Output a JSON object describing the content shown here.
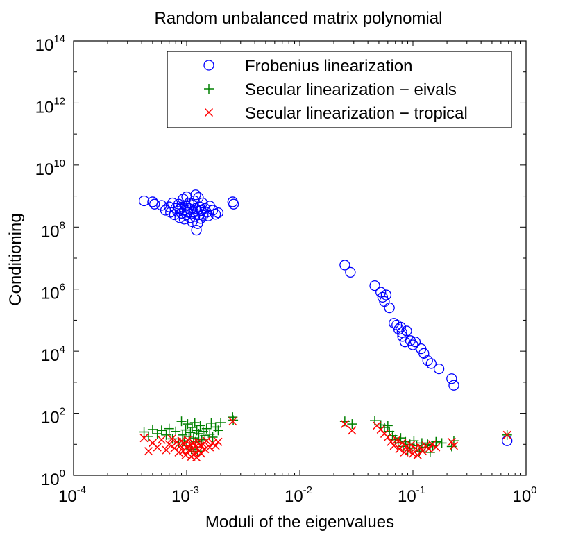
{
  "chart_data": {
    "type": "scatter",
    "title": "Random unbalanced matrix polynomial",
    "xlabel": "Moduli of the eigenvalues",
    "ylabel": "Conditioning",
    "xscale": "log",
    "yscale": "log",
    "xlim": [
      0.0001,
      1
    ],
    "ylim": [
      1,
      100000000000000
    ],
    "x_ticks": [
      {
        "base": "10",
        "exp": "-4",
        "value": 0.0001
      },
      {
        "base": "10",
        "exp": "-3",
        "value": 0.001
      },
      {
        "base": "10",
        "exp": "-2",
        "value": 0.01
      },
      {
        "base": "10",
        "exp": "-1",
        "value": 0.1
      },
      {
        "base": "10",
        "exp": "0",
        "value": 1
      }
    ],
    "y_ticks": [
      {
        "base": "10",
        "exp": "0",
        "value": 1
      },
      {
        "base": "10",
        "exp": "2",
        "value": 100
      },
      {
        "base": "10",
        "exp": "4",
        "value": 10000
      },
      {
        "base": "10",
        "exp": "6",
        "value": 1000000
      },
      {
        "base": "10",
        "exp": "8",
        "value": 100000000
      },
      {
        "base": "10",
        "exp": "10",
        "value": 10000000000
      },
      {
        "base": "10",
        "exp": "12",
        "value": 1000000000000
      },
      {
        "base": "10",
        "exp": "14",
        "value": 100000000000000
      }
    ],
    "legend_position": "top-right",
    "series": [
      {
        "name": "Frobenius linearization",
        "marker": "circle",
        "color": "#0000ff",
        "points": [
          [
            0.00042,
            700000000.0
          ],
          [
            0.0005,
            650000000.0
          ],
          [
            0.00052,
            550000000.0
          ],
          [
            0.0006,
            500000000.0
          ],
          [
            0.00065,
            350000000.0
          ],
          [
            0.0007,
            450000000.0
          ],
          [
            0.00072,
            300000000.0
          ],
          [
            0.00075,
            600000000.0
          ],
          [
            0.00078,
            250000000.0
          ],
          [
            0.0008,
            400000000.0
          ],
          [
            0.00083,
            320000000.0
          ],
          [
            0.00085,
            550000000.0
          ],
          [
            0.00087,
            200000000.0
          ],
          [
            0.00088,
            380000000.0
          ],
          [
            0.0009,
            280000000.0
          ],
          [
            0.00092,
            450000000.0
          ],
          [
            0.00093,
            800000000.0
          ],
          [
            0.00095,
            180000000.0
          ],
          [
            0.00096,
            350000000.0
          ],
          [
            0.00098,
            500000000.0
          ],
          [
            0.001,
            250000000.0
          ],
          [
            0.001,
            950000000.0
          ],
          [
            0.00102,
            300000000.0
          ],
          [
            0.00104,
            400000000.0
          ],
          [
            0.00105,
            600000000.0
          ],
          [
            0.00107,
            200000000.0
          ],
          [
            0.00108,
            360000000.0
          ],
          [
            0.0011,
            270000000.0
          ],
          [
            0.00112,
            150000000.0
          ],
          [
            0.00113,
            500000000.0
          ],
          [
            0.00115,
            300000000.0
          ],
          [
            0.00117,
            700000000.0
          ],
          [
            0.00118,
            220000000.0
          ],
          [
            0.0012,
            1100000000.0
          ],
          [
            0.0012,
            400000000.0
          ],
          [
            0.00122,
            80000000.0
          ],
          [
            0.00124,
            320000000.0
          ],
          [
            0.00125,
            130000000.0
          ],
          [
            0.00127,
            900000000.0
          ],
          [
            0.00128,
            250000000.0
          ],
          [
            0.0013,
            450000000.0
          ],
          [
            0.00133,
            190000000.0
          ],
          [
            0.00135,
            340000000.0
          ],
          [
            0.00138,
            600000000.0
          ],
          [
            0.0014,
            240000000.0
          ],
          [
            0.00145,
            400000000.0
          ],
          [
            0.0015,
            300000000.0
          ],
          [
            0.00155,
            230000000.0
          ],
          [
            0.0016,
            480000000.0
          ],
          [
            0.0017,
            350000000.0
          ],
          [
            0.0018,
            260000000.0
          ],
          [
            0.0019,
            290000000.0
          ],
          [
            0.00255,
            650000000.0
          ],
          [
            0.0026,
            550000000.0
          ]
        ]
      },
      {
        "name": "Frobenius linearization",
        "marker": "circle",
        "color": "#0000ff",
        "points": [
          [
            0.025,
            6000000.0
          ],
          [
            0.028,
            3500000.0
          ],
          [
            0.046,
            1300000.0
          ],
          [
            0.052,
            800000.0
          ],
          [
            0.054,
            550000.0
          ],
          [
            0.056,
            400000.0
          ],
          [
            0.058,
            650000.0
          ],
          [
            0.062,
            250000.0
          ],
          [
            0.068,
            80000.0
          ],
          [
            0.072,
            70000.0
          ],
          [
            0.075,
            50000.0
          ],
          [
            0.078,
            60000.0
          ],
          [
            0.08,
            40000.0
          ],
          [
            0.081,
            30000.0
          ],
          [
            0.085,
            20000.0
          ],
          [
            0.088,
            45000.0
          ],
          [
            0.095,
            22000.0
          ],
          [
            0.1,
            16000.0
          ],
          [
            0.105,
            20000.0
          ],
          [
            0.118,
            12000.0
          ],
          [
            0.125,
            8500.0
          ],
          [
            0.135,
            5000.0
          ],
          [
            0.145,
            4000.0
          ],
          [
            0.17,
            2700.0
          ],
          [
            0.22,
            1300.0
          ],
          [
            0.23,
            800.0
          ],
          [
            0.68,
            13.0
          ]
        ]
      },
      {
        "name": "Secular linearization − eivals",
        "marker": "plus",
        "color": "#008000",
        "points": [
          [
            0.00042,
            25.0
          ],
          [
            0.00046,
            18.0
          ],
          [
            0.0005,
            30.0
          ],
          [
            0.00055,
            22.0
          ],
          [
            0.0006,
            28.0
          ],
          [
            0.00066,
            20.0
          ],
          [
            0.0007,
            32.0
          ],
          [
            0.00075,
            15.0
          ],
          [
            0.0008,
            26.0
          ],
          [
            0.00085,
            11.0
          ],
          [
            0.0009,
            55.0
          ],
          [
            0.00092,
            20.0
          ],
          [
            0.00095,
            13.0
          ],
          [
            0.00098,
            29.0
          ],
          [
            0.001,
            9.0
          ],
          [
            0.00102,
            45.0
          ],
          [
            0.00105,
            18.0
          ],
          [
            0.00108,
            24.0
          ],
          [
            0.0011,
            7.0
          ],
          [
            0.00112,
            35.0
          ],
          [
            0.00115,
            16.0
          ],
          [
            0.00118,
            50.0
          ],
          [
            0.0012,
            12.0
          ],
          [
            0.00123,
            28.0
          ],
          [
            0.00125,
            6.0
          ],
          [
            0.00128,
            22.0
          ],
          [
            0.00132,
            40.0
          ],
          [
            0.00136,
            14.0
          ],
          [
            0.0014,
            26.0
          ],
          [
            0.00145,
            19.0
          ],
          [
            0.0015,
            32.0
          ],
          [
            0.0016,
            21.0
          ],
          [
            0.00165,
            48.0
          ],
          [
            0.0017,
            17.0
          ],
          [
            0.0018,
            36.0
          ],
          [
            0.0019,
            28.0
          ],
          [
            0.002,
            50.0
          ],
          [
            0.00255,
            75.0
          ],
          [
            0.00258,
            60.0
          ],
          [
            0.025,
            55.0
          ],
          [
            0.029,
            45.0
          ],
          [
            0.046,
            58.0
          ],
          [
            0.052,
            42.0
          ],
          [
            0.056,
            35.0
          ],
          [
            0.06,
            40.0
          ],
          [
            0.062,
            26.0
          ],
          [
            0.066,
            19.0
          ],
          [
            0.07,
            14.0
          ],
          [
            0.074,
            11.0
          ],
          [
            0.078,
            16.0
          ],
          [
            0.082,
            8.5
          ],
          [
            0.086,
            12.0
          ],
          [
            0.09,
            6.5
          ],
          [
            0.094,
            10.0
          ],
          [
            0.098,
            7.5
          ],
          [
            0.102,
            13.0
          ],
          [
            0.108,
            9.0
          ],
          [
            0.114,
            6.0
          ],
          [
            0.12,
            11.0
          ],
          [
            0.128,
            8.0
          ],
          [
            0.135,
            10.0
          ],
          [
            0.142,
            5.5
          ],
          [
            0.15,
            9.0
          ],
          [
            0.16,
            12.0
          ],
          [
            0.18,
            11.0
          ],
          [
            0.22,
            8.5
          ],
          [
            0.23,
            13.0
          ],
          [
            0.68,
            20.0
          ]
        ]
      },
      {
        "name": "Secular linearization − tropical",
        "marker": "x",
        "color": "#ff0000",
        "points": [
          [
            0.00042,
            16.0
          ],
          [
            0.00046,
            6.0
          ],
          [
            0.0005,
            11.0
          ],
          [
            0.00055,
            8.0
          ],
          [
            0.0006,
            14.0
          ],
          [
            0.00066,
            6.5
          ],
          [
            0.0007,
            10.0
          ],
          [
            0.00074,
            15.0
          ],
          [
            0.00078,
            7.5
          ],
          [
            0.00082,
            12.0
          ],
          [
            0.00085,
            5.5
          ],
          [
            0.00088,
            9.0
          ],
          [
            0.0009,
            13.0
          ],
          [
            0.00093,
            6.0
          ],
          [
            0.00096,
            10.0
          ],
          [
            0.00098,
            4.5
          ],
          [
            0.001,
            8.0
          ],
          [
            0.00102,
            14.0
          ],
          [
            0.00105,
            6.5
          ],
          [
            0.00108,
            9.5
          ],
          [
            0.0011,
            4.0
          ],
          [
            0.00112,
            7.0
          ],
          [
            0.00115,
            11.0
          ],
          [
            0.00118,
            5.0
          ],
          [
            0.0012,
            8.5
          ],
          [
            0.00122,
            3.8
          ],
          [
            0.00125,
            12.0
          ],
          [
            0.00128,
            6.0
          ],
          [
            0.00132,
            9.0
          ],
          [
            0.00135,
            5.0
          ],
          [
            0.0014,
            10.0
          ],
          [
            0.00145,
            7.0
          ],
          [
            0.0015,
            13.0
          ],
          [
            0.0016,
            8.0
          ],
          [
            0.0017,
            11.0
          ],
          [
            0.0018,
            9.0
          ],
          [
            0.0019,
            12.0
          ],
          [
            0.00255,
            55.0
          ],
          [
            0.025,
            45.0
          ],
          [
            0.029,
            28.0
          ],
          [
            0.048,
            40.0
          ],
          [
            0.052,
            30.0
          ],
          [
            0.056,
            22.0
          ],
          [
            0.06,
            17.0
          ],
          [
            0.064,
            12.0
          ],
          [
            0.068,
            9.0
          ],
          [
            0.072,
            14.0
          ],
          [
            0.076,
            7.0
          ],
          [
            0.08,
            11.0
          ],
          [
            0.084,
            5.5
          ],
          [
            0.088,
            8.5
          ],
          [
            0.092,
            6.0
          ],
          [
            0.096,
            9.5
          ],
          [
            0.1,
            5.0
          ],
          [
            0.105,
            7.5
          ],
          [
            0.11,
            4.5
          ],
          [
            0.116,
            8.0
          ],
          [
            0.122,
            6.0
          ],
          [
            0.13,
            9.0
          ],
          [
            0.138,
            7.0
          ],
          [
            0.148,
            10.0
          ],
          [
            0.16,
            8.0
          ],
          [
            0.22,
            12.0
          ],
          [
            0.23,
            9.0
          ],
          [
            0.68,
            20.0
          ]
        ]
      }
    ],
    "legend": [
      {
        "label": "Frobenius linearization",
        "marker": "circle",
        "color": "#0000ff"
      },
      {
        "label": "Secular linearization − eivals",
        "marker": "plus",
        "color": "#008000"
      },
      {
        "label": "Secular linearization − tropical",
        "marker": "x",
        "color": "#ff0000"
      }
    ]
  }
}
